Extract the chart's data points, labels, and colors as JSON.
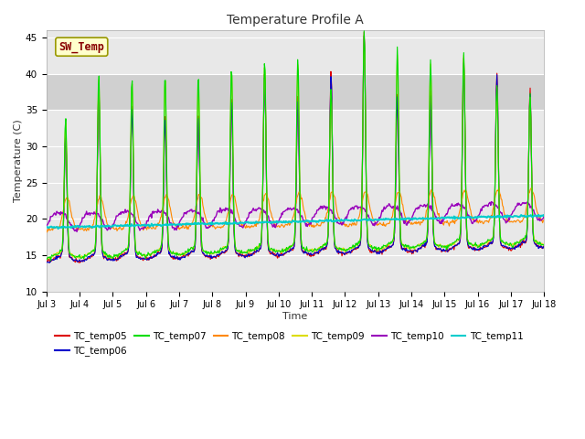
{
  "title": "Temperature Profile A",
  "xlabel": "Time",
  "ylabel": "Temperature (C)",
  "xlim_days": [
    3,
    18
  ],
  "ylim": [
    10,
    46
  ],
  "yticks": [
    10,
    15,
    20,
    25,
    30,
    35,
    40,
    45
  ],
  "xtick_labels": [
    "Jul 3",
    "Jul 4",
    "Jul 5",
    "Jul 6",
    "Jul 7",
    "Jul 8",
    "Jul 9",
    "Jul 10",
    "Jul 11",
    "Jul 12",
    "Jul 13",
    "Jul 14",
    "Jul 15",
    "Jul 16",
    "Jul 17",
    "Jul 18"
  ],
  "shaded_band": [
    35,
    40
  ],
  "series_colors": {
    "TC_temp05": "#dd0000",
    "TC_temp06": "#0000cc",
    "TC_temp07": "#00dd00",
    "TC_temp08": "#ff8800",
    "TC_temp09": "#dddd00",
    "TC_temp10": "#9900bb",
    "TC_temp11": "#00cccc"
  },
  "legend_entries": [
    "TC_temp05",
    "TC_temp06",
    "TC_temp07",
    "TC_temp08",
    "TC_temp09",
    "TC_temp10",
    "TC_temp11"
  ],
  "legend_colors": [
    "#dd0000",
    "#0000cc",
    "#00dd00",
    "#ff8800",
    "#dddd00",
    "#9900bb",
    "#00cccc"
  ],
  "sw_temp_box_facecolor": "#ffffcc",
  "sw_temp_box_edgecolor": "#999900",
  "sw_temp_text_color": "#880000",
  "background_color": "#ffffff",
  "plot_bg_color": "#e8e8e8",
  "band_color": "#d0d0d0",
  "grid_color": "#ffffff"
}
